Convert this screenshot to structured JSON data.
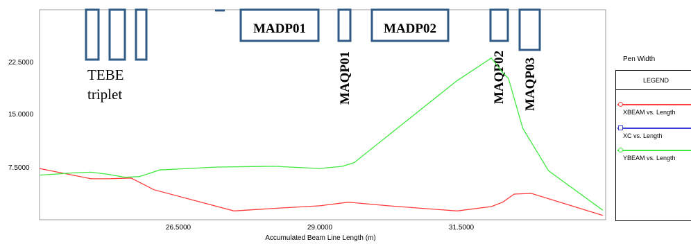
{
  "chart_data": {
    "type": "line",
    "title": "",
    "xlabel": "Accumulated Beam Line Length (m)",
    "ylabel": "",
    "xlim": [
      24.1,
      34.0
    ],
    "ylim": [
      0,
      28.7
    ],
    "x_ticks": [
      "26.5000",
      "29.0000",
      "31.5000"
    ],
    "x_tick_values": [
      26.5,
      29.0,
      31.5
    ],
    "y_ticks": [
      "7.5000",
      "15.0000",
      "22.5000"
    ],
    "y_tick_values": [
      7.5,
      15.0,
      22.5
    ],
    "grid": false,
    "legend_title": "LEGEND",
    "legend_header": "Pen Width",
    "legend_position": "right",
    "series": [
      {
        "name": "XBEAM vs. Length",
        "color": "#ff3b3b",
        "marker": "circle",
        "x": [
          24.1,
          25.0,
          25.3,
          25.7,
          26.1,
          27.5,
          28.3,
          29.0,
          29.5,
          30.2,
          31.4,
          32.0,
          32.2,
          32.4,
          32.7,
          33.95
        ],
        "y": [
          7.0,
          5.6,
          5.6,
          5.7,
          4.1,
          1.2,
          1.6,
          1.9,
          2.4,
          1.9,
          1.2,
          1.8,
          2.4,
          3.5,
          3.6,
          0.6
        ]
      },
      {
        "name": "XC vs. Length",
        "color": "#3b3bd6",
        "marker": "square",
        "x": [],
        "y": []
      },
      {
        "name": "YBEAM vs. Length",
        "color": "#3fe83f",
        "marker": "circle",
        "x": [
          24.1,
          24.7,
          25.0,
          25.3,
          25.6,
          25.85,
          26.2,
          27.2,
          28.2,
          29.0,
          29.4,
          29.6,
          31.4,
          32.0,
          32.2,
          32.3,
          32.55,
          33.0,
          33.95
        ],
        "y": [
          6.1,
          6.4,
          6.5,
          6.2,
          5.8,
          5.9,
          6.8,
          7.2,
          7.3,
          7.0,
          7.3,
          7.8,
          19.0,
          22.1,
          20.1,
          19.3,
          12.5,
          6.7,
          1.3
        ]
      }
    ],
    "annotations": [
      {
        "text": "TEBE",
        "style": "plain"
      },
      {
        "text": "triplet",
        "style": "plain"
      },
      {
        "text": "MADP01",
        "style": "bold"
      },
      {
        "text": "MADP02",
        "style": "bold"
      },
      {
        "text": "MAQP01",
        "style": "bold",
        "rotated": true
      },
      {
        "text": "MAQP02",
        "style": "bold",
        "rotated": true
      },
      {
        "text": "MAQP03",
        "style": "bold",
        "rotated": true
      }
    ]
  }
}
